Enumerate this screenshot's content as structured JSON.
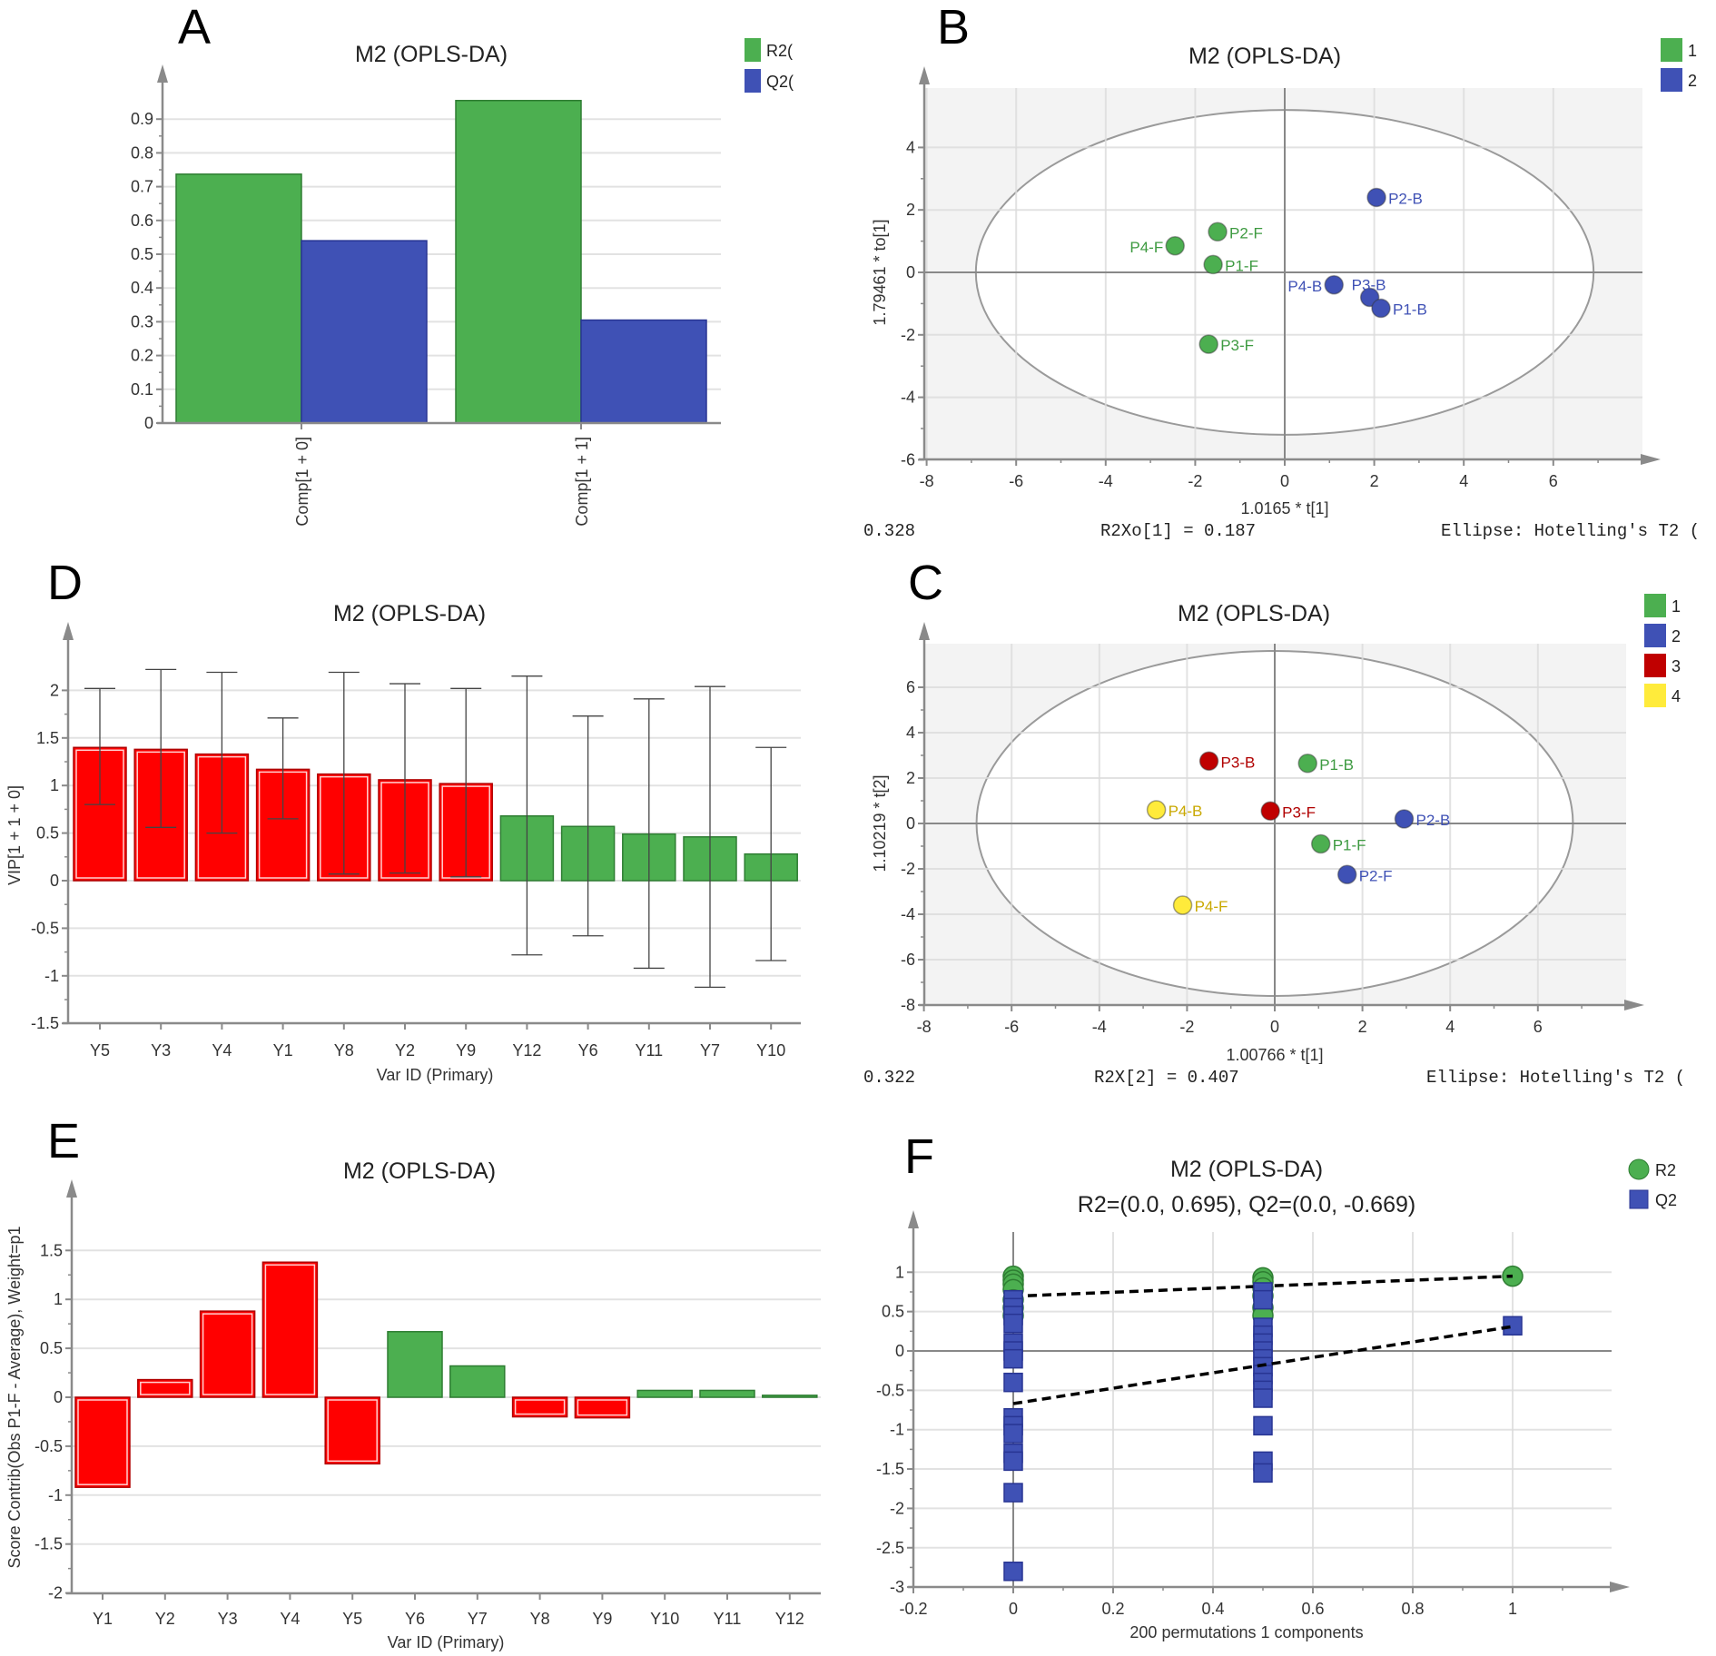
{
  "chart_data": [
    {
      "panel_label": "A",
      "type": "bar",
      "title": "M2 (OPLS-DA)",
      "categories": [
        "Comp[1 + 0]",
        "Comp[1 + 1]"
      ],
      "series": [
        {
          "name": "R2(",
          "color": "#4caf50",
          "values": [
            0.737,
            0.955
          ]
        },
        {
          "name": "Q2(",
          "color": "#3f51b5",
          "values": [
            0.54,
            0.305
          ]
        }
      ],
      "yticks": [
        "0",
        "0.1",
        "0.2",
        "0.3",
        "0.4",
        "0.5",
        "0.6",
        "0.7",
        "0.8",
        "0.9"
      ],
      "ylim": [
        0,
        1
      ],
      "grid": true,
      "legend": "top-right"
    },
    {
      "panel_label": "B",
      "type": "scatter",
      "title": "M2 (OPLS-DA)",
      "xlabel": "1.0165 * t[1]",
      "ylabel": "1.79461 * to[1]",
      "xticks": [
        "-8",
        "-6",
        "-4",
        "-2",
        "0",
        "2",
        "4",
        "6"
      ],
      "yticks": [
        "-6",
        "-4",
        "-2",
        "0",
        "2",
        "4"
      ],
      "xlim": [
        -8,
        7.8
      ],
      "ylim": [
        -6,
        5.9
      ],
      "ellipse": {
        "rx": 6.9,
        "ry": 5.2
      },
      "groups": [
        {
          "name": "1",
          "color": "#4caf50",
          "text_color": "#3d9a40"
        },
        {
          "name": "2",
          "color": "#3f51b5",
          "text_color": "#3f51b5"
        }
      ],
      "points": [
        {
          "label": "P2-B",
          "x": 2.05,
          "y": 2.4,
          "group": 1,
          "side": "right"
        },
        {
          "label": "P2-F",
          "x": -1.5,
          "y": 1.3,
          "group": 0,
          "side": "right"
        },
        {
          "label": "P4-F",
          "x": -2.45,
          "y": 0.85,
          "group": 0,
          "side": "left"
        },
        {
          "label": "P1-F",
          "x": -1.6,
          "y": 0.25,
          "group": 0,
          "side": "right"
        },
        {
          "label": "P4-B",
          "x": 1.1,
          "y": -0.4,
          "group": 1,
          "side": "left"
        },
        {
          "label": "P3-B",
          "x": 1.9,
          "y": -0.8,
          "group": 1,
          "side": "above"
        },
        {
          "label": "P1-B",
          "x": 2.15,
          "y": -1.15,
          "group": 1,
          "side": "right"
        },
        {
          "label": "P3-F",
          "x": -1.7,
          "y": -2.3,
          "group": 0,
          "side": "right"
        }
      ],
      "footer": [
        "0.328",
        "R2Xo[1] = 0.187",
        "Ellipse: Hotelling's T2 ("
      ],
      "grid": true,
      "legend": "top-right"
    },
    {
      "panel_label": "C",
      "type": "scatter",
      "title": "M2 (OPLS-DA)",
      "xlabel": "1.00766 * t[1]",
      "ylabel": "1.10219 * t[2]",
      "xticks": [
        "-8",
        "-6",
        "-4",
        "-2",
        "0",
        "2",
        "4",
        "6"
      ],
      "yticks": [
        "-8",
        "-6",
        "-4",
        "-2",
        "0",
        "2",
        "4",
        "6"
      ],
      "xlim": [
        -8,
        7.8
      ],
      "ylim": [
        -8,
        7.9
      ],
      "ellipse": {
        "rx": 6.8,
        "ry": 7.6
      },
      "groups": [
        {
          "name": "1",
          "color": "#4caf50",
          "text_color": "#3d9a40"
        },
        {
          "name": "2",
          "color": "#3f51b5",
          "text_color": "#3f51b5"
        },
        {
          "name": "3",
          "color": "#c00000",
          "text_color": "#b00000"
        },
        {
          "name": "4",
          "color": "#ffeb3b",
          "text_color": "#c9a800"
        }
      ],
      "points": [
        {
          "label": "P3-B",
          "x": -1.5,
          "y": 2.75,
          "group": 2,
          "side": "right"
        },
        {
          "label": "P1-B",
          "x": 0.75,
          "y": 2.65,
          "group": 0,
          "side": "right"
        },
        {
          "label": "P4-B",
          "x": -2.7,
          "y": 0.6,
          "group": 3,
          "side": "right"
        },
        {
          "label": "P3-F",
          "x": -0.1,
          "y": 0.55,
          "group": 2,
          "side": "right"
        },
        {
          "label": "P2-B",
          "x": 2.95,
          "y": 0.2,
          "group": 1,
          "side": "right"
        },
        {
          "label": "P1-F",
          "x": 1.05,
          "y": -0.9,
          "group": 0,
          "side": "right"
        },
        {
          "label": "P2-F",
          "x": 1.65,
          "y": -2.25,
          "group": 1,
          "side": "right"
        },
        {
          "label": "P4-F",
          "x": -2.1,
          "y": -3.6,
          "group": 3,
          "side": "right"
        }
      ],
      "footer": [
        "0.322",
        "R2X[2] = 0.407",
        "Ellipse: Hotelling's T2 ("
      ],
      "grid": true,
      "legend": "top-right"
    },
    {
      "panel_label": "D",
      "type": "bar",
      "title": "M2 (OPLS-DA)",
      "xlabel": "Var ID (Primary)",
      "ylabel": "VIP[1 + 1 + 0]",
      "categories": [
        "Y5",
        "Y3",
        "Y4",
        "Y1",
        "Y8",
        "Y2",
        "Y9",
        "Y12",
        "Y6",
        "Y11",
        "Y7",
        "Y10"
      ],
      "values": [
        1.4,
        1.38,
        1.33,
        1.17,
        1.12,
        1.06,
        1.02,
        0.68,
        0.57,
        0.49,
        0.46,
        0.28
      ],
      "error_low": [
        0.8,
        0.56,
        0.5,
        0.65,
        0.07,
        0.08,
        0.04,
        -0.78,
        -0.58,
        -0.92,
        -1.12,
        -0.84
      ],
      "error_high": [
        2.02,
        2.22,
        2.19,
        1.71,
        2.19,
        2.07,
        2.02,
        2.15,
        1.73,
        1.91,
        2.04,
        1.4
      ],
      "highlighted": [
        true,
        true,
        true,
        true,
        true,
        true,
        true,
        false,
        false,
        false,
        false,
        false
      ],
      "colors": {
        "highlighted": "#ff0000",
        "normal": "#4caf50"
      },
      "yticks": [
        "-1.5",
        "-1",
        "-0.5",
        "0",
        "0.5",
        "1",
        "1.5",
        "2"
      ],
      "ylim": [
        -1.5,
        2.3
      ],
      "grid": true
    },
    {
      "panel_label": "E",
      "type": "bar",
      "title": "M2 (OPLS-DA)",
      "xlabel": "Var ID (Primary)",
      "ylabel": "Score Contrib(Obs P1-F - Average), Weight=p1",
      "categories": [
        "Y1",
        "Y2",
        "Y3",
        "Y4",
        "Y5",
        "Y6",
        "Y7",
        "Y8",
        "Y9",
        "Y10",
        "Y11",
        "Y12"
      ],
      "values": [
        -0.92,
        0.18,
        0.88,
        1.38,
        -0.68,
        0.67,
        0.32,
        -0.2,
        -0.21,
        0.07,
        0.07,
        0.02
      ],
      "highlighted": [
        true,
        true,
        true,
        true,
        true,
        false,
        false,
        true,
        true,
        false,
        false,
        false
      ],
      "colors": {
        "highlighted": "#ff0000",
        "normal": "#4caf50"
      },
      "yticks": [
        "-2",
        "-1.5",
        "-1",
        "-0.5",
        "0",
        "0.5",
        "1",
        "1.5"
      ],
      "ylim": [
        -2,
        1.8
      ],
      "grid": true
    },
    {
      "panel_label": "F",
      "type": "scatter",
      "title": "M2 (OPLS-DA)",
      "subtitle": "R2=(0.0, 0.695), Q2=(0.0, -0.669)",
      "xlabel": "200 permutations 1 components",
      "xticks": [
        "-0.2",
        "0",
        "0.2",
        "0.4",
        "0.6",
        "0.8",
        "1"
      ],
      "yticks": [
        "-3",
        "-2.5",
        "-2",
        "-1.5",
        "-1",
        "-0.5",
        "0",
        "0.5",
        "1"
      ],
      "xlim": [
        -0.2,
        1.2
      ],
      "ylim": [
        -3,
        1.4
      ],
      "series": [
        {
          "name": "R2",
          "marker": "circle",
          "color": "#4caf50",
          "x": [
            0,
            0,
            0,
            0,
            0,
            0,
            0,
            0.5,
            0.5,
            0.5,
            0.5,
            0.5,
            0.5,
            1
          ],
          "y": [
            0.95,
            0.9,
            0.85,
            0.78,
            0.65,
            0.55,
            0.45,
            0.93,
            0.88,
            0.8,
            0.7,
            0.55,
            0.45,
            0.95
          ],
          "regression": [
            [
              0,
              0.695
            ],
            [
              1,
              0.95
            ]
          ]
        },
        {
          "name": "Q2",
          "marker": "square",
          "color": "#3f51b5",
          "x": [
            0,
            0,
            0,
            0,
            0,
            0,
            0,
            0,
            0,
            0,
            0,
            0,
            0,
            0,
            0,
            0.5,
            0.5,
            0.5,
            0.5,
            0.5,
            0.5,
            0.5,
            0.5,
            0.5,
            0.5,
            0.5,
            0.5,
            0.5,
            0.5,
            0.5,
            1
          ],
          "y": [
            0.65,
            0.55,
            0.45,
            0.35,
            0.1,
            0,
            -0.1,
            -0.4,
            -0.85,
            -0.95,
            -1.05,
            -1.3,
            -1.4,
            -1.8,
            -2.8,
            0.75,
            0.65,
            0.3,
            0.2,
            0.1,
            0,
            -0.1,
            -0.2,
            -0.3,
            -0.4,
            -0.5,
            -0.6,
            -0.95,
            -1.4,
            -1.55,
            0.32
          ],
          "regression": [
            [
              0,
              -0.669
            ],
            [
              1,
              0.31
            ]
          ]
        }
      ],
      "grid": true,
      "legend": "top-right"
    }
  ]
}
